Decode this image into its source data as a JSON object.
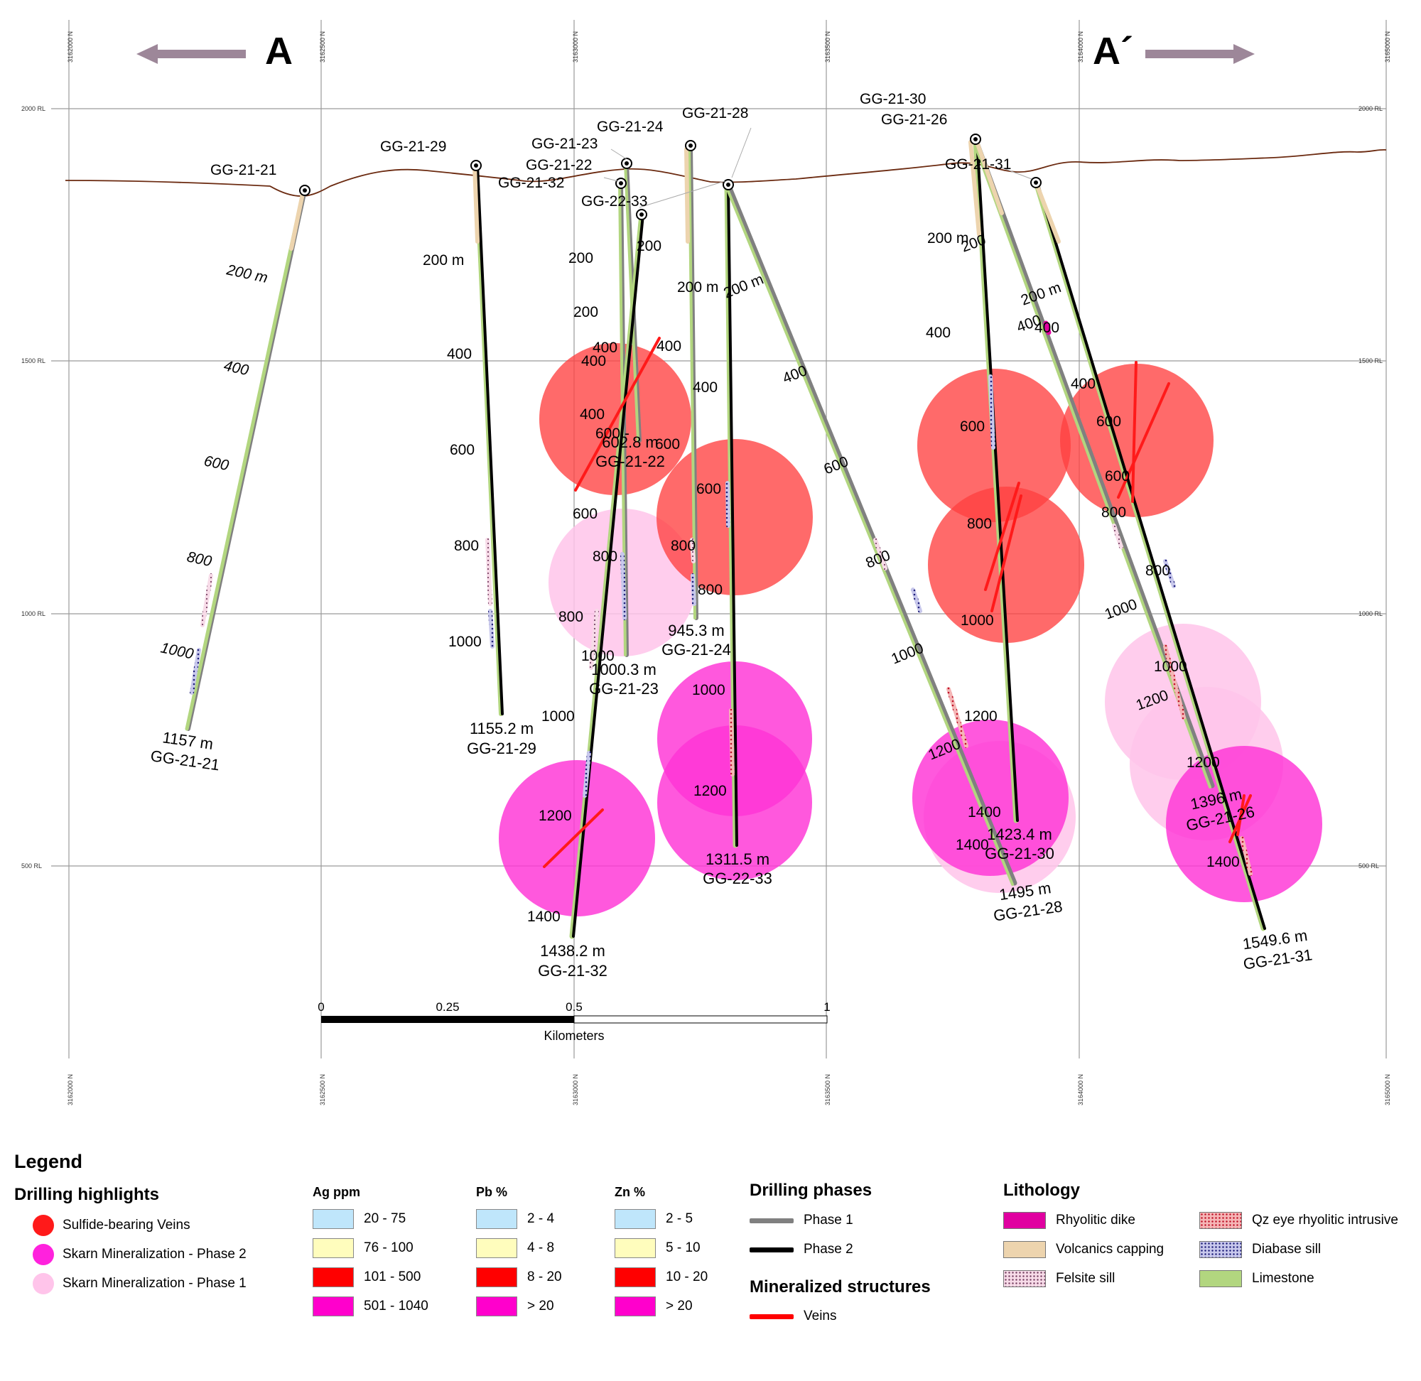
{
  "section": {
    "end_left": "A",
    "end_right": "A´",
    "rl_labels": [
      "2000 RL",
      "1500 RL",
      "1000 RL",
      "500 RL"
    ],
    "northings": [
      "3162000 N",
      "3162500 N",
      "3163000 N",
      "3163500 N",
      "3164000 N",
      "3165000 N"
    ],
    "scale": {
      "ticks": [
        "0",
        "0.25",
        "0.5",
        "1"
      ],
      "unit": "Kilometers"
    },
    "drillholes": [
      {
        "id": "GG-21-21",
        "end": "1157 m",
        "phase": 1
      },
      {
        "id": "GG-21-29",
        "end": "1155.2 m",
        "phase": 2
      },
      {
        "id": "GG-21-23",
        "end": "1000.3 m",
        "phase": 1
      },
      {
        "id": "GG-21-24",
        "end": "945.3 m",
        "phase": 1
      },
      {
        "id": "GG-21-22",
        "end": "602.8 m",
        "phase": 1
      },
      {
        "id": "GG-21-32",
        "end": "1438.2 m",
        "phase": 2
      },
      {
        "id": "GG-22-33",
        "end": "1311.5 m",
        "phase": 2
      },
      {
        "id": "GG-21-28",
        "end": "1495 m",
        "phase": 1
      },
      {
        "id": "GG-21-30",
        "end": "1423.4 m",
        "phase": 2
      },
      {
        "id": "GG-21-26",
        "end": "1396 m",
        "phase": 1
      },
      {
        "id": "GG-21-31",
        "end": "1549.6 m",
        "phase": 2
      }
    ],
    "depth_labels": [
      "200 m",
      "200",
      "400",
      "600",
      "600 -",
      "800",
      "1000",
      "1200",
      "1400"
    ]
  },
  "legend": {
    "title": "Legend",
    "highlights": {
      "title": "Drilling highlights",
      "items": [
        {
          "label": "Sulfide-bearing Veins",
          "color": "#ff1a1a"
        },
        {
          "label": "Skarn Mineralization - Phase 2",
          "color": "#ff22dd"
        },
        {
          "label": "Skarn Mineralization - Phase 1",
          "color": "#ffc4ea"
        }
      ]
    },
    "ag": {
      "title": "Ag ppm",
      "items": [
        "20 - 75",
        "76 - 100",
        "101 - 500",
        "501 - 1040"
      ]
    },
    "pb": {
      "title": "Pb %",
      "items": [
        "2 - 4",
        "4 - 8",
        "8 - 20",
        "> 20"
      ]
    },
    "zn": {
      "title": "Zn %",
      "items": [
        "2 - 5",
        "5 - 10",
        "10 - 20",
        "> 20"
      ]
    },
    "grade_colors": [
      "#bfe6fb",
      "#fffdbd",
      "#ff0000",
      "#ff00cc"
    ],
    "phases": {
      "title": "Drilling phases",
      "items": [
        {
          "label": "Phase 1",
          "color": "#808080"
        },
        {
          "label": "Phase 2",
          "color": "#000000"
        }
      ]
    },
    "structures": {
      "title": "Mineralized structures",
      "items": [
        {
          "label": "Veins",
          "color": "#ff0000"
        }
      ]
    },
    "lithology": {
      "title": "Lithology",
      "items": [
        {
          "label": "Rhyolitic dike",
          "color": "#e000a0"
        },
        {
          "label": "Volcanics capping",
          "color": "#edd4ae"
        },
        {
          "label": "Felsite sill",
          "color": "#f7dbe8"
        },
        {
          "label": "Qz eye rhyolitic intrusive",
          "color": "#f5b6b6"
        },
        {
          "label": "Diabase sill",
          "color": "#c8c8ec"
        },
        {
          "label": "Limestone",
          "color": "#b2d67f"
        }
      ]
    }
  }
}
